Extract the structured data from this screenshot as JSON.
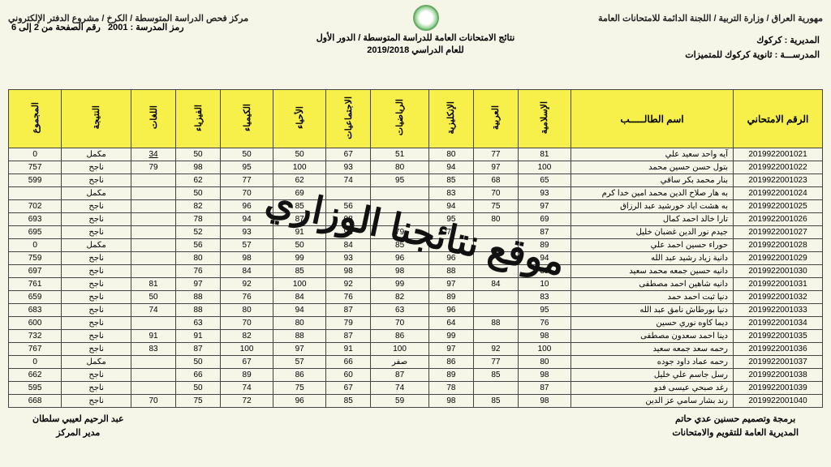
{
  "header": {
    "line1_right": "مهورية العراق / وزارة التربية / اللجنة الدائمة للامتحانات العامة",
    "line1_left": "مركز فحص الدراسة المتوسطة / الكرخ / مشروع الدفتر الإلكتروني",
    "line2": "نتائج الامتحانات العامة للدراسة المتوسطة / الدور الأول",
    "line3": "للعام الدراسي 2019/2018",
    "school_code_label": "رمز المدرسة :",
    "school_code": "2001",
    "page_label": "رقم الصفحة من 2 إلى 6",
    "directorate_label": "المديرية :",
    "directorate": "كركوك",
    "school_label": "المدرســـة :",
    "school": "ثانوية كركوك للمتميزات"
  },
  "columns": {
    "exam_no": "الرقم الامتحاني",
    "name": "اسم الطالـــــب",
    "c1": "الإسلامية",
    "c2": "العربية",
    "c3": "الإنكليزية",
    "c4": "الرياضيات",
    "c5": "الاجتماعيات",
    "c6": "الأحياء",
    "c7": "الكيمياء",
    "c8": "الفيزياء",
    "c9": "اللغات",
    "result": "النتيجة",
    "total": "المجموع"
  },
  "rows": [
    {
      "id": "2019922001021",
      "name": "آيه واحد سعيد علي",
      "g": [
        "81",
        "77",
        "80",
        "51",
        "67",
        "50",
        "50",
        "50",
        "34"
      ],
      "res": "مكمل",
      "tot": "0",
      "und": true
    },
    {
      "id": "2019922001022",
      "name": "بتول حسن حسين محمد",
      "g": [
        "100",
        "97",
        "94",
        "80",
        "93",
        "100",
        "95",
        "98",
        "79"
      ],
      "res": "ناجح",
      "tot": "757"
    },
    {
      "id": "2019922001023",
      "name": "بنار محمد بكر ساقي",
      "g": [
        "65",
        "68",
        "85",
        "95",
        "74",
        "62",
        "77",
        "62"
      ],
      "res": "ناجح",
      "tot": "599"
    },
    {
      "id": "2019922001024",
      "name": "به هار صلاح الدين محمد امين خدا كرم",
      "g": [
        "93",
        "70",
        "83",
        "",
        "",
        "69",
        "70",
        "50"
      ],
      "res": "مكمل",
      "tot": ""
    },
    {
      "id": "2019922001025",
      "name": "به هشت اياد خورشيد عبد الرزاق",
      "g": [
        "97",
        "75",
        "94",
        "",
        "56",
        "85",
        "96",
        "82"
      ],
      "res": "ناجح",
      "tot": "702"
    },
    {
      "id": "2019922001026",
      "name": "تارا خالد احمد كمال",
      "g": [
        "69",
        "80",
        "95",
        "",
        "98",
        "87",
        "94",
        "78"
      ],
      "res": "ناجح",
      "tot": "693"
    },
    {
      "id": "2019922001027",
      "name": "جيدم نور الدين غضبان خليل",
      "g": [
        "87",
        "",
        "78",
        "79",
        "93",
        "91",
        "93",
        "52"
      ],
      "res": "ناجح",
      "tot": "695"
    },
    {
      "id": "2019922001028",
      "name": "حوراء حسين احمد علي",
      "g": [
        "89",
        "",
        "غ",
        "85",
        "84",
        "50",
        "57",
        "56"
      ],
      "res": "مكمل",
      "tot": "0"
    },
    {
      "id": "2019922001029",
      "name": "دانية زياد رشيد عبد الله",
      "g": [
        "94",
        "",
        "96",
        "96",
        "93",
        "99",
        "98",
        "80"
      ],
      "res": "ناجح",
      "tot": "759"
    },
    {
      "id": "2019922001030",
      "name": "دانيه حسين جمعه محمد سعيد",
      "g": [
        "85",
        "",
        "88",
        "98",
        "98",
        "85",
        "84",
        "76"
      ],
      "res": "ناجح",
      "tot": "697"
    },
    {
      "id": "2019922001031",
      "name": "دانيه شاهين احمد مصطفى",
      "g": [
        "10",
        "84",
        "97",
        "99",
        "92",
        "100",
        "92",
        "97",
        "81"
      ],
      "res": "ناجح",
      "tot": "761"
    },
    {
      "id": "2019922001032",
      "name": "دنيا ثبت احمد حمد",
      "g": [
        "83",
        "",
        "89",
        "82",
        "76",
        "84",
        "76",
        "88",
        "50"
      ],
      "res": "ناجح",
      "tot": "659"
    },
    {
      "id": "2019922001033",
      "name": "دنيا بورطاش نامق عبد الله",
      "g": [
        "95",
        "",
        "96",
        "63",
        "87",
        "94",
        "80",
        "88",
        "74"
      ],
      "res": "ناجح",
      "tot": "683"
    },
    {
      "id": "2019922001034",
      "name": "ديما كاوه نوري حسين",
      "g": [
        "76",
        "88",
        "64",
        "70",
        "79",
        "80",
        "70",
        "63"
      ],
      "res": "ناجح",
      "tot": "600"
    },
    {
      "id": "2019922001035",
      "name": "دينا احمد سعدون مصطفى",
      "g": [
        "98",
        "",
        "99",
        "86",
        "87",
        "88",
        "82",
        "91",
        "91"
      ],
      "res": "ناجح",
      "tot": "732"
    },
    {
      "id": "2019922001036",
      "name": "رحمه سعد جمعه سعيد",
      "g": [
        "100",
        "92",
        "97",
        "100",
        "91",
        "97",
        "100",
        "87",
        "83"
      ],
      "res": "ناجح",
      "tot": "767"
    },
    {
      "id": "2019922001037",
      "name": "رحمه عماد داود جوده",
      "g": [
        "80",
        "77",
        "86",
        "صفر",
        "66",
        "57",
        "67",
        "50"
      ],
      "res": "مكمل",
      "tot": "0"
    },
    {
      "id": "2019922001038",
      "name": "رسل جاسم علي خليل",
      "g": [
        "98",
        "85",
        "89",
        "87",
        "60",
        "86",
        "89",
        "66"
      ],
      "res": "ناجح",
      "tot": "662"
    },
    {
      "id": "2019922001039",
      "name": "رغد صبحي عيسى فدو",
      "g": [
        "87",
        "",
        "78",
        "74",
        "67",
        "75",
        "74",
        "50"
      ],
      "res": "ناجح",
      "tot": "595"
    },
    {
      "id": "2019922001040",
      "name": "رند بشار سامي عز الدين",
      "g": [
        "98",
        "85",
        "98",
        "59",
        "85",
        "96",
        "72",
        "75",
        "70"
      ],
      "res": "ناجح",
      "tot": "668"
    }
  ],
  "watermark": "موقع نتائجنا الوزاري",
  "footer": {
    "right1": "برمجة وتصميم حسنين عدي حاتم",
    "right2": "المديرية العامة للتقويم والامتحانات",
    "left1": "عبد الرحيم لعيبي سلطان",
    "left2": "مدير المركز"
  },
  "colors": {
    "header_bg": "#f7ef4a",
    "page_bg": "#f5f5e8",
    "border": "#444444"
  }
}
